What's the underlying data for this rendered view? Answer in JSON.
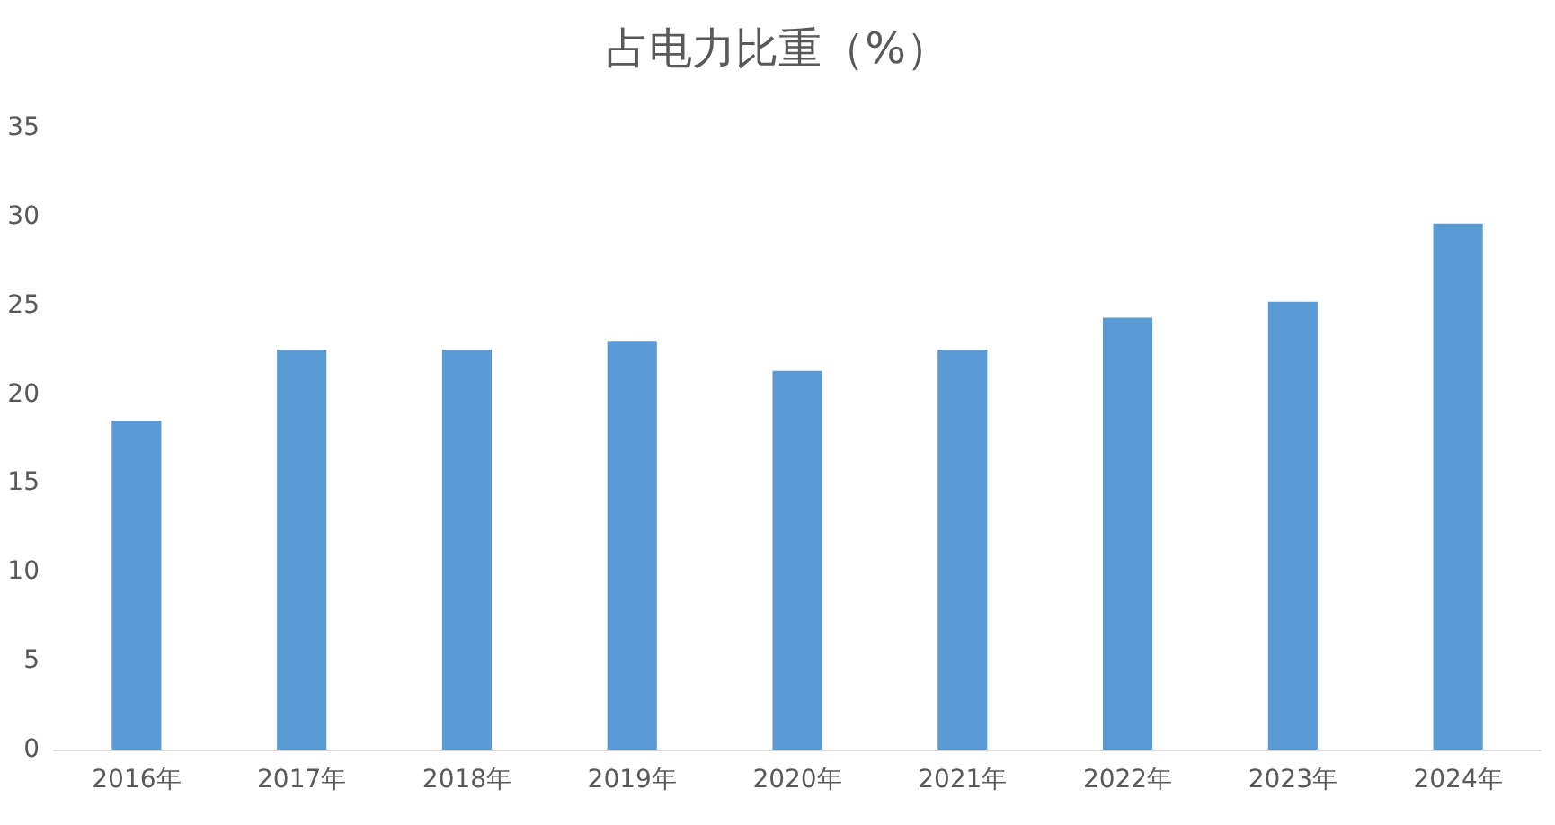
{
  "chart_data": {
    "type": "bar",
    "title": "占电力比重（%）",
    "categories": [
      "2016年",
      "2017年",
      "2018年",
      "2019年",
      "2020年",
      "2021年",
      "2022年",
      "2023年",
      "2024年"
    ],
    "values": [
      18.5,
      22.5,
      22.5,
      23.0,
      21.3,
      22.5,
      24.3,
      25.2,
      29.6
    ],
    "color": "#5b9bd5",
    "ylim": [
      0,
      35
    ],
    "yticks": [
      0,
      5,
      10,
      15,
      20,
      25,
      30,
      35
    ],
    "grid": false
  }
}
